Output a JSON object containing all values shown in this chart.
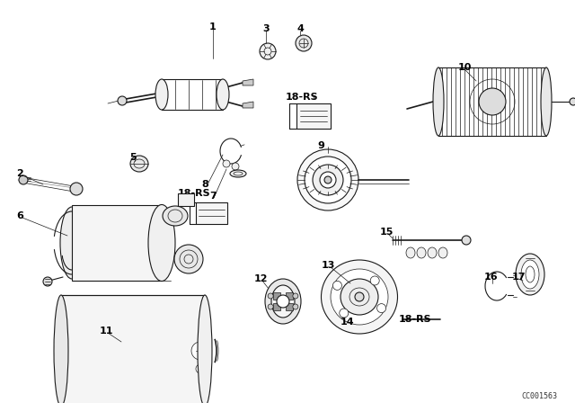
{
  "bg_color": "#ffffff",
  "line_color": "#1a1a1a",
  "watermark": "CC001563",
  "figsize": [
    6.4,
    4.48
  ],
  "dpi": 100,
  "label_fs": 8,
  "labels": [
    [
      "1",
      237,
      30
    ],
    [
      "2",
      22,
      193
    ],
    [
      "3",
      296,
      32
    ],
    [
      "4",
      334,
      32
    ],
    [
      "5",
      148,
      175
    ],
    [
      "6",
      22,
      240
    ],
    [
      "7",
      237,
      218
    ],
    [
      "8",
      228,
      205
    ],
    [
      "9",
      357,
      162
    ],
    [
      "10",
      517,
      75
    ],
    [
      "11",
      118,
      368
    ],
    [
      "12",
      290,
      310
    ],
    [
      "13",
      365,
      295
    ],
    [
      "14",
      387,
      358
    ],
    [
      "15",
      430,
      258
    ],
    [
      "16",
      546,
      308
    ],
    [
      "17",
      577,
      308
    ],
    [
      "18-RS",
      336,
      108
    ],
    [
      "18-RS",
      216,
      215
    ],
    [
      "18-RS",
      462,
      355
    ]
  ]
}
